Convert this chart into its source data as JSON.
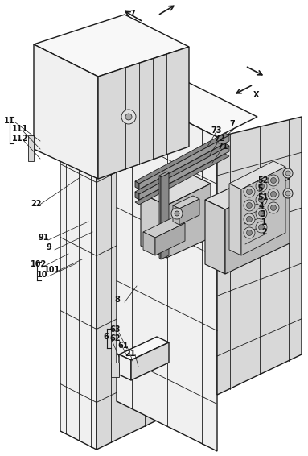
{
  "bg_color": "#ffffff",
  "line_color": "#1a1a1a",
  "figsize": [
    3.83,
    5.66
  ],
  "dpi": 100,
  "face_light": "#f0f0f0",
  "face_mid": "#d8d8d8",
  "face_dark": "#b8b8b8",
  "face_very_light": "#f8f8f8"
}
